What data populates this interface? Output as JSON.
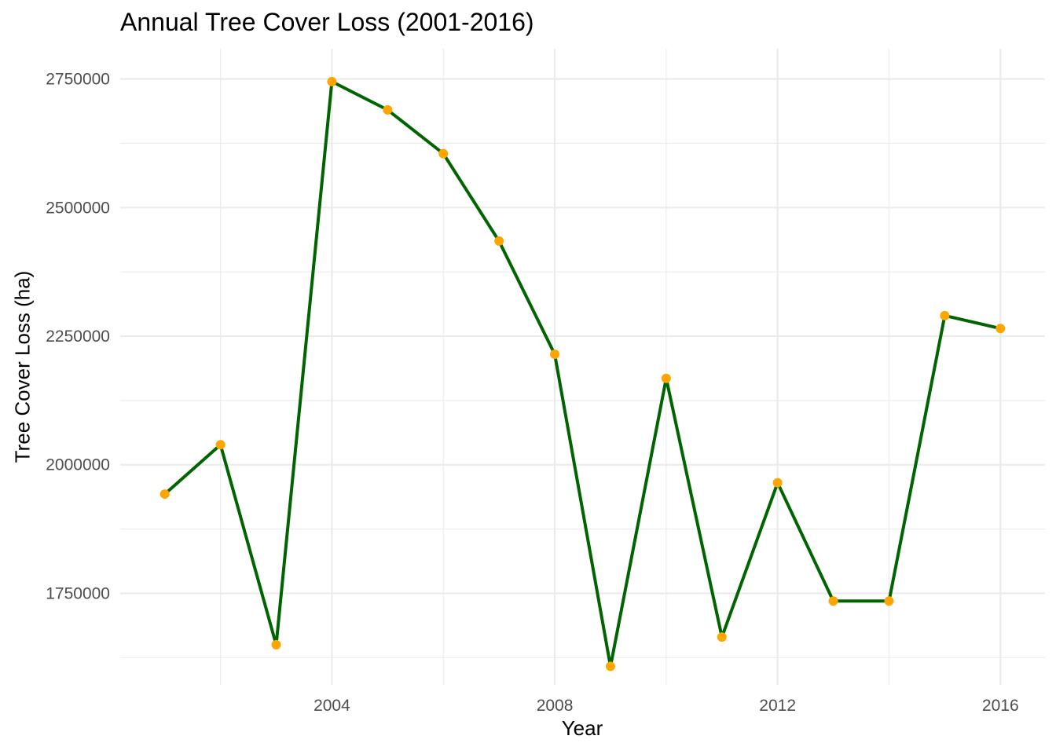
{
  "chart_data": {
    "type": "line",
    "title": "Annual Tree Cover Loss (2001-2016)",
    "xlabel": "Year",
    "ylabel": "Tree Cover Loss (ha)",
    "x": [
      2001,
      2002,
      2003,
      2004,
      2005,
      2006,
      2007,
      2008,
      2009,
      2010,
      2011,
      2012,
      2013,
      2014,
      2015,
      2016
    ],
    "series": [
      {
        "values": [
          1943000,
          2039000,
          1650000,
          2745000,
          2690000,
          2605000,
          2435000,
          2215000,
          1608000,
          2168000,
          1665000,
          1965000,
          1735000,
          1735000,
          2290000,
          2265000
        ],
        "line_color": "#006400",
        "point_color": "#FFA500"
      }
    ],
    "xlim": [
      2000.2,
      2016.8
    ],
    "ylim": [
      1572000,
      2809000
    ],
    "x_ticks": [
      2004,
      2008,
      2012,
      2016
    ],
    "x_tick_labels": [
      "2004",
      "2008",
      "2012",
      "2016"
    ],
    "y_ticks": [
      1750000,
      2000000,
      2250000,
      2500000,
      2750000
    ],
    "y_tick_labels": [
      "1750000",
      "2000000",
      "2250000",
      "2500000",
      "2750000"
    ],
    "grid": true,
    "legend": "none",
    "grid_color": "#EBEBEB",
    "tick_label_color": "#4D4D4D"
  }
}
